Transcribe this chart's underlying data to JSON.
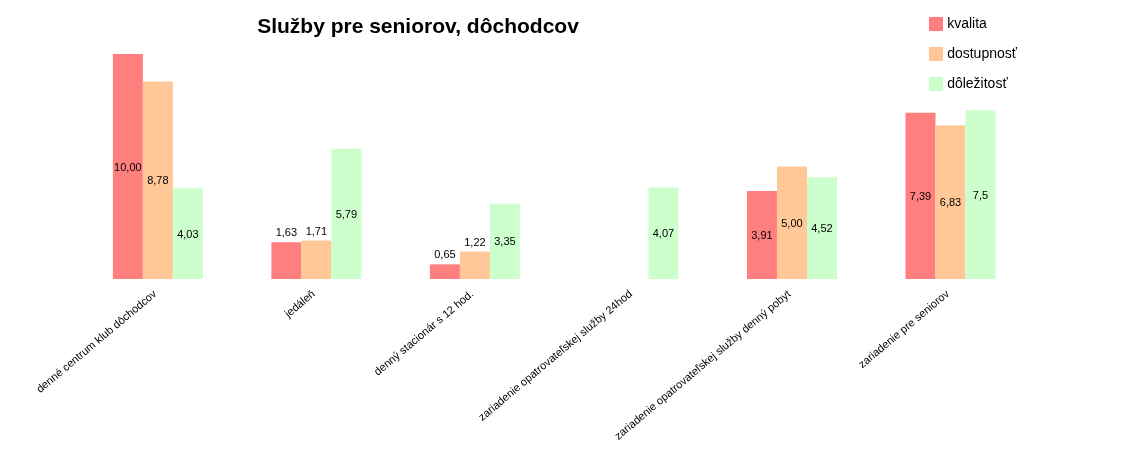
{
  "chart_data": {
    "type": "bar",
    "title": "Služby pre seniorov, dôchodcov",
    "categories": [
      "denné centrum klub dôchodcov",
      "jedáleň",
      "denný stacionár s 12 hod.",
      "zariadenie opatrovateľskej služby 24hod",
      "zariadenie opatrovateľskej služby denný pobyt",
      "zariadenie pre seniorov"
    ],
    "series": [
      {
        "name": "kvalita",
        "color": "#ff7f7f",
        "values": [
          10.0,
          1.63,
          0.65,
          null,
          3.91,
          7.39
        ],
        "value_labels": [
          "10,00",
          "1,63",
          "0,65",
          null,
          "3,91",
          "7,39"
        ]
      },
      {
        "name": "dostupnosť",
        "color": "#ffc896",
        "values": [
          8.78,
          1.71,
          1.22,
          null,
          5.0,
          6.83
        ],
        "value_labels": [
          "8,78",
          "1,71",
          "1,22",
          null,
          "5,00",
          "6,83"
        ]
      },
      {
        "name": "dôležitosť",
        "color": "#ccffcc",
        "values": [
          4.03,
          5.79,
          3.35,
          4.07,
          4.52,
          7.5
        ],
        "value_labels": [
          "4,03",
          "5,79",
          "3,35",
          "4,07",
          "4,52",
          "7,5"
        ]
      }
    ],
    "legend": "top right",
    "grid": false
  }
}
